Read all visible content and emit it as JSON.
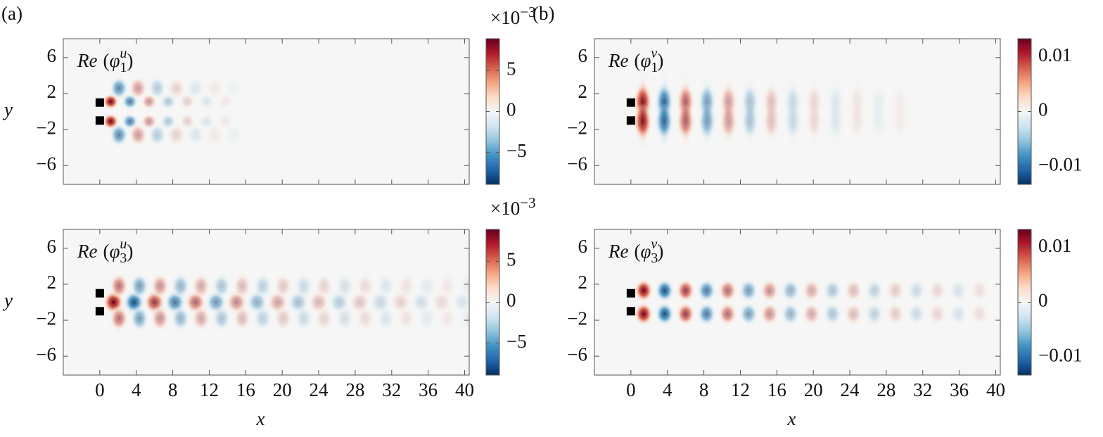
{
  "chart_data": [
    {
      "type": "heatmap",
      "panel_label": "(a)",
      "field": "u1",
      "annotation": {
        "text": "Re",
        "open": "(",
        "symbol": "φ",
        "sub": "1",
        "sup": "u",
        "close": ")"
      },
      "ylabel": "y",
      "xlim": [
        -4,
        40.5
      ],
      "ylim": [
        -8.1,
        8.1
      ],
      "xticks": [
        0,
        4,
        8,
        12,
        16,
        20,
        24,
        28,
        32,
        36,
        40
      ],
      "show_xticklabels": false,
      "yticks": [
        6,
        2,
        {
          "value": -2,
          "label": "−2"
        },
        {
          "value": -6,
          "label": "−6"
        }
      ],
      "clim": [
        -8.9,
        8.9
      ],
      "cticks": [
        {
          "value": -5,
          "label": "−5"
        },
        0,
        5
      ],
      "colorbar_exponent": {
        "base": "×10",
        "power": "−3"
      },
      "colormap": [
        "#053061",
        "#2166ac",
        "#4393c3",
        "#92c5de",
        "#d1e5f0",
        "#f5f6f5",
        "#fddbc7",
        "#f4a582",
        "#d6604d",
        "#b2182b",
        "#67001f"
      ]
    },
    {
      "type": "heatmap",
      "panel_label": "(b)",
      "field": "v1",
      "annotation": {
        "text": "Re",
        "open": "(",
        "symbol": "φ",
        "sub": "1",
        "sup": "v",
        "close": ")"
      },
      "xlim": [
        -4,
        40.5
      ],
      "ylim": [
        -8.1,
        8.1
      ],
      "xticks": [
        0,
        4,
        8,
        12,
        16,
        20,
        24,
        28,
        32,
        36,
        40
      ],
      "show_xticklabels": false,
      "yticks": [
        6,
        2,
        {
          "value": -2,
          "label": "−2"
        },
        {
          "value": -6,
          "label": "−6"
        }
      ],
      "clim": [
        -0.0133,
        0.0133
      ],
      "cticks": [
        {
          "value": -0.01,
          "label": "−0.01"
        },
        0,
        0.01
      ],
      "colormap": [
        "#053061",
        "#2166ac",
        "#4393c3",
        "#92c5de",
        "#d1e5f0",
        "#f5f6f5",
        "#fddbc7",
        "#f4a582",
        "#d6604d",
        "#b2182b",
        "#67001f"
      ]
    },
    {
      "type": "heatmap",
      "field": "u3",
      "annotation": {
        "text": "Re",
        "open": "(",
        "symbol": "φ",
        "sub": "3",
        "sup": "u",
        "close": ")"
      },
      "xlabel": "x",
      "ylabel": "y",
      "xlim": [
        -4,
        40.5
      ],
      "ylim": [
        -8.1,
        8.1
      ],
      "xticks": [
        0,
        4,
        8,
        12,
        16,
        20,
        24,
        28,
        32,
        36,
        40
      ],
      "show_xticklabels": true,
      "yticks": [
        6,
        2,
        {
          "value": -2,
          "label": "−2"
        },
        {
          "value": -6,
          "label": "−6"
        }
      ],
      "clim": [
        -8.9,
        8.9
      ],
      "cticks": [
        {
          "value": -5,
          "label": "−5"
        },
        0,
        5
      ],
      "colorbar_exponent": {
        "base": "×10",
        "power": "−3"
      },
      "colormap": [
        "#053061",
        "#2166ac",
        "#4393c3",
        "#92c5de",
        "#d1e5f0",
        "#f5f6f5",
        "#fddbc7",
        "#f4a582",
        "#d6604d",
        "#b2182b",
        "#67001f"
      ]
    },
    {
      "type": "heatmap",
      "field": "v3",
      "annotation": {
        "text": "Re",
        "open": "(",
        "symbol": "φ",
        "sub": "3",
        "sup": "v",
        "close": ")"
      },
      "xlabel": "x",
      "xlim": [
        -4,
        40.5
      ],
      "ylim": [
        -8.1,
        8.1
      ],
      "xticks": [
        0,
        4,
        8,
        12,
        16,
        20,
        24,
        28,
        32,
        36,
        40
      ],
      "show_xticklabels": true,
      "yticks": [
        6,
        2,
        {
          "value": -2,
          "label": "−2"
        },
        {
          "value": -6,
          "label": "−6"
        }
      ],
      "clim": [
        -0.0133,
        0.0133
      ],
      "cticks": [
        {
          "value": -0.01,
          "label": "−0.01"
        },
        0,
        0.01
      ],
      "colormap": [
        "#053061",
        "#2166ac",
        "#4393c3",
        "#92c5de",
        "#d1e5f0",
        "#f5f6f5",
        "#fddbc7",
        "#f4a582",
        "#d6604d",
        "#b2182b",
        "#67001f"
      ]
    }
  ]
}
